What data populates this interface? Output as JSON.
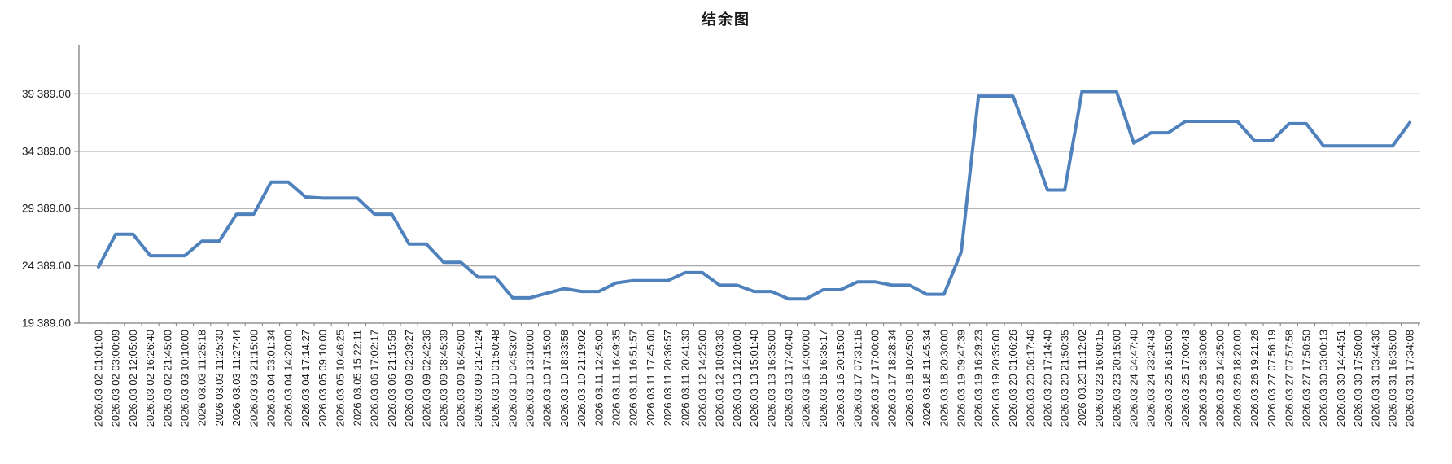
{
  "chart_data": {
    "type": "line",
    "title": "结余图",
    "legend": "none",
    "grid": true,
    "line_color": "#4F81BD",
    "gridline_color": "#a8a8a8",
    "axis_color": "#7f7f7f",
    "text_color": "#1a1a1a",
    "ylim": [
      19389,
      44389
    ],
    "y_tick_values": [
      19389,
      24389,
      29389,
      34389,
      39389
    ],
    "y_tick_labels": [
      "19 389.00",
      "24 389.00",
      "29 389.00",
      "34 389.00",
      "39 389.00"
    ],
    "categories": [
      "2026.03.02 01:01:00",
      "2026.03.02 03:00:09",
      "2026.03.02 12:05:00",
      "2026.03.02 16:26:40",
      "2026.03.02 21:45:00",
      "2026.03.03 10:10:00",
      "2026.03.03 11:25:18",
      "2026.03.03 11:25:30",
      "2026.03.03 11:27:44",
      "2026.03.03 21:15:00",
      "2026.03.04 03:01:34",
      "2026.03.04 14:20:00",
      "2026.03.04 17:14:27",
      "2026.03.05 09:10:00",
      "2026.03.05 10:46:25",
      "2026.03.05 15:22:11",
      "2026.03.06 17:02:17",
      "2026.03.06 21:15:58",
      "2026.03.09 02:39:27",
      "2026.03.09 02:42:36",
      "2026.03.09 08:45:39",
      "2026.03.09 16:45:00",
      "2026.03.09 21:41:24",
      "2026.03.10 01:50:48",
      "2026.03.10 04:53:07",
      "2026.03.10 13:10:00",
      "2026.03.10 17:15:00",
      "2026.03.10 18:33:58",
      "2026.03.10 21:19:02",
      "2026.03.11 12:45:00",
      "2026.03.11 16:49:35",
      "2026.03.11 16:51:57",
      "2026.03.11 17:45:00",
      "2026.03.11 20:36:57",
      "2026.03.11 20:41:30",
      "2026.03.12 14:25:00",
      "2026.03.12 18:03:36",
      "2026.03.13 12:10:00",
      "2026.03.13 15:01:40",
      "2026.03.13 16:35:00",
      "2026.03.13 17:40:40",
      "2026.03.16 14:00:00",
      "2026.03.16 16:35:17",
      "2026.03.16 20:15:00",
      "2026.03.17 07:31:16",
      "2026.03.17 17:00:00",
      "2026.03.17 18:28:34",
      "2026.03.18 10:45:00",
      "2026.03.18 11:45:34",
      "2026.03.18 20:30:00",
      "2026.03.19 09:47:39",
      "2026.03.19 16:29:23",
      "2026.03.19 20:35:00",
      "2026.03.20 01:06:26",
      "2026.03.20 06:17:46",
      "2026.03.20 17:14:40",
      "2026.03.20 21:50:35",
      "2026.03.23 11:12:02",
      "2026.03.23 16:00:15",
      "2026.03.23 20:15:00",
      "2026.03.24 04:47:40",
      "2026.03.24 23:24:43",
      "2026.03.25 16:15:00",
      "2026.03.25 17:00:43",
      "2026.03.26 08:30:06",
      "2026.03.26 14:25:00",
      "2026.03.26 18:20:00",
      "2026.03.26 19:21:26",
      "2026.03.27 07:56:19",
      "2026.03.27 07:57:58",
      "2026.03.27 17:50:50",
      "2026.03.30 03:00:13",
      "2026.03.30 14:44:51",
      "2026.03.30 17:50:00",
      "2026.03.31 03:44:36",
      "2026.03.31 16:35:00",
      "2026.03.31 17:34:08"
    ],
    "values": [
      24300,
      27150,
      27150,
      25280,
      25280,
      25280,
      26550,
      26550,
      28900,
      28900,
      31700,
      31700,
      30400,
      30300,
      30300,
      30300,
      28900,
      28900,
      26300,
      26300,
      24700,
      24700,
      23400,
      23400,
      21600,
      21600,
      22000,
      22400,
      22150,
      22150,
      22900,
      23100,
      23100,
      23100,
      23800,
      23800,
      22700,
      22700,
      22150,
      22150,
      21500,
      21500,
      22300,
      22300,
      23000,
      23000,
      22700,
      22700,
      21900,
      21900,
      25600,
      39200,
      39200,
      39200,
      35200,
      31000,
      31000,
      39600,
      39600,
      39600,
      35100,
      36000,
      36000,
      37000,
      37000,
      37000,
      37000,
      35300,
      35300,
      36800,
      36800,
      34850,
      34850,
      34850,
      34850,
      34850,
      36900
    ]
  }
}
